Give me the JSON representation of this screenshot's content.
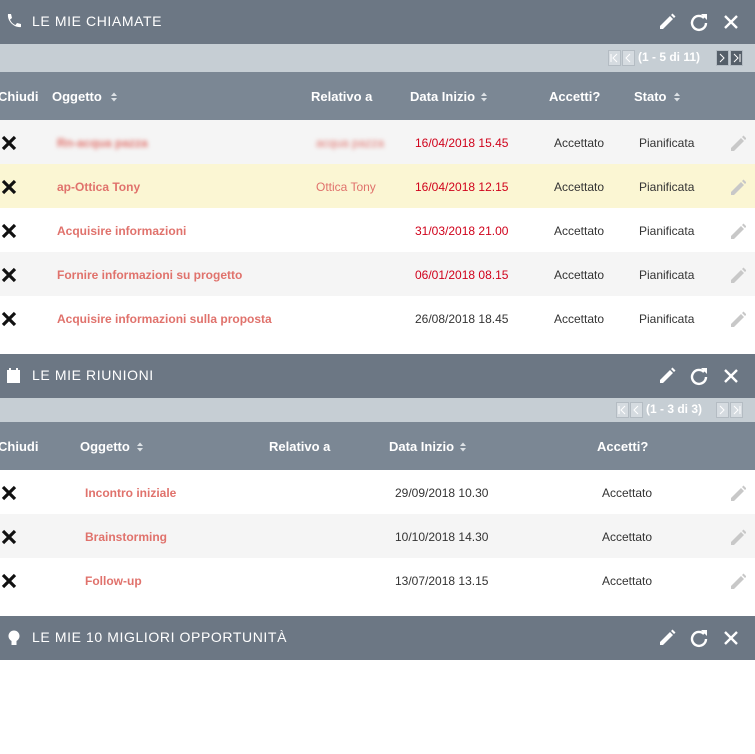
{
  "dashlets": [
    {
      "title": "LE MIE CHIAMATE",
      "pagination": "(1 - 5 di 11)",
      "columns": [
        "Chiudi",
        "Oggetto",
        "Relativo a",
        "Data Inizio",
        "Accetti?",
        "Stato"
      ],
      "rows": [
        [
          "Rn-acqua pazza",
          "acqua pazza",
          "16/04/2018 15.45",
          "Accettato",
          "Pianificata"
        ],
        [
          "ap-Ottica Tony",
          "Ottica Tony",
          "16/04/2018 12.15",
          "Accettato",
          "Pianificata"
        ],
        [
          "Acquisire informazioni",
          null,
          "31/03/2018 21.00",
          "Accettato",
          "Pianificata"
        ],
        [
          "Fornire informazioni su progetto",
          null,
          "06/01/2018 08.15",
          "Accettato",
          "Pianificata"
        ],
        [
          "Acquisire informazioni sulla proposta",
          null,
          "26/08/2018 18.45",
          "Accettato",
          "Pianificata"
        ]
      ]
    },
    {
      "title": "LE MIE RIUNIONI",
      "pagination": "(1 - 3 di 3)",
      "columns": [
        "Chiudi",
        "Oggetto",
        "Relativo a",
        "Data Inizio",
        "Accetti?"
      ],
      "rows": [
        [
          "Incontro iniziale",
          null,
          "29/09/2018 10.30",
          "Accettato"
        ],
        [
          "Brainstorming",
          null,
          "10/10/2018 14.30",
          "Accettato"
        ],
        [
          "Follow-up",
          null,
          "13/07/2018 13.15",
          "Accettato"
        ]
      ]
    },
    {
      "title": "LE MIE 10 MIGLIORI OPPORTUNITÀ"
    }
  ]
}
